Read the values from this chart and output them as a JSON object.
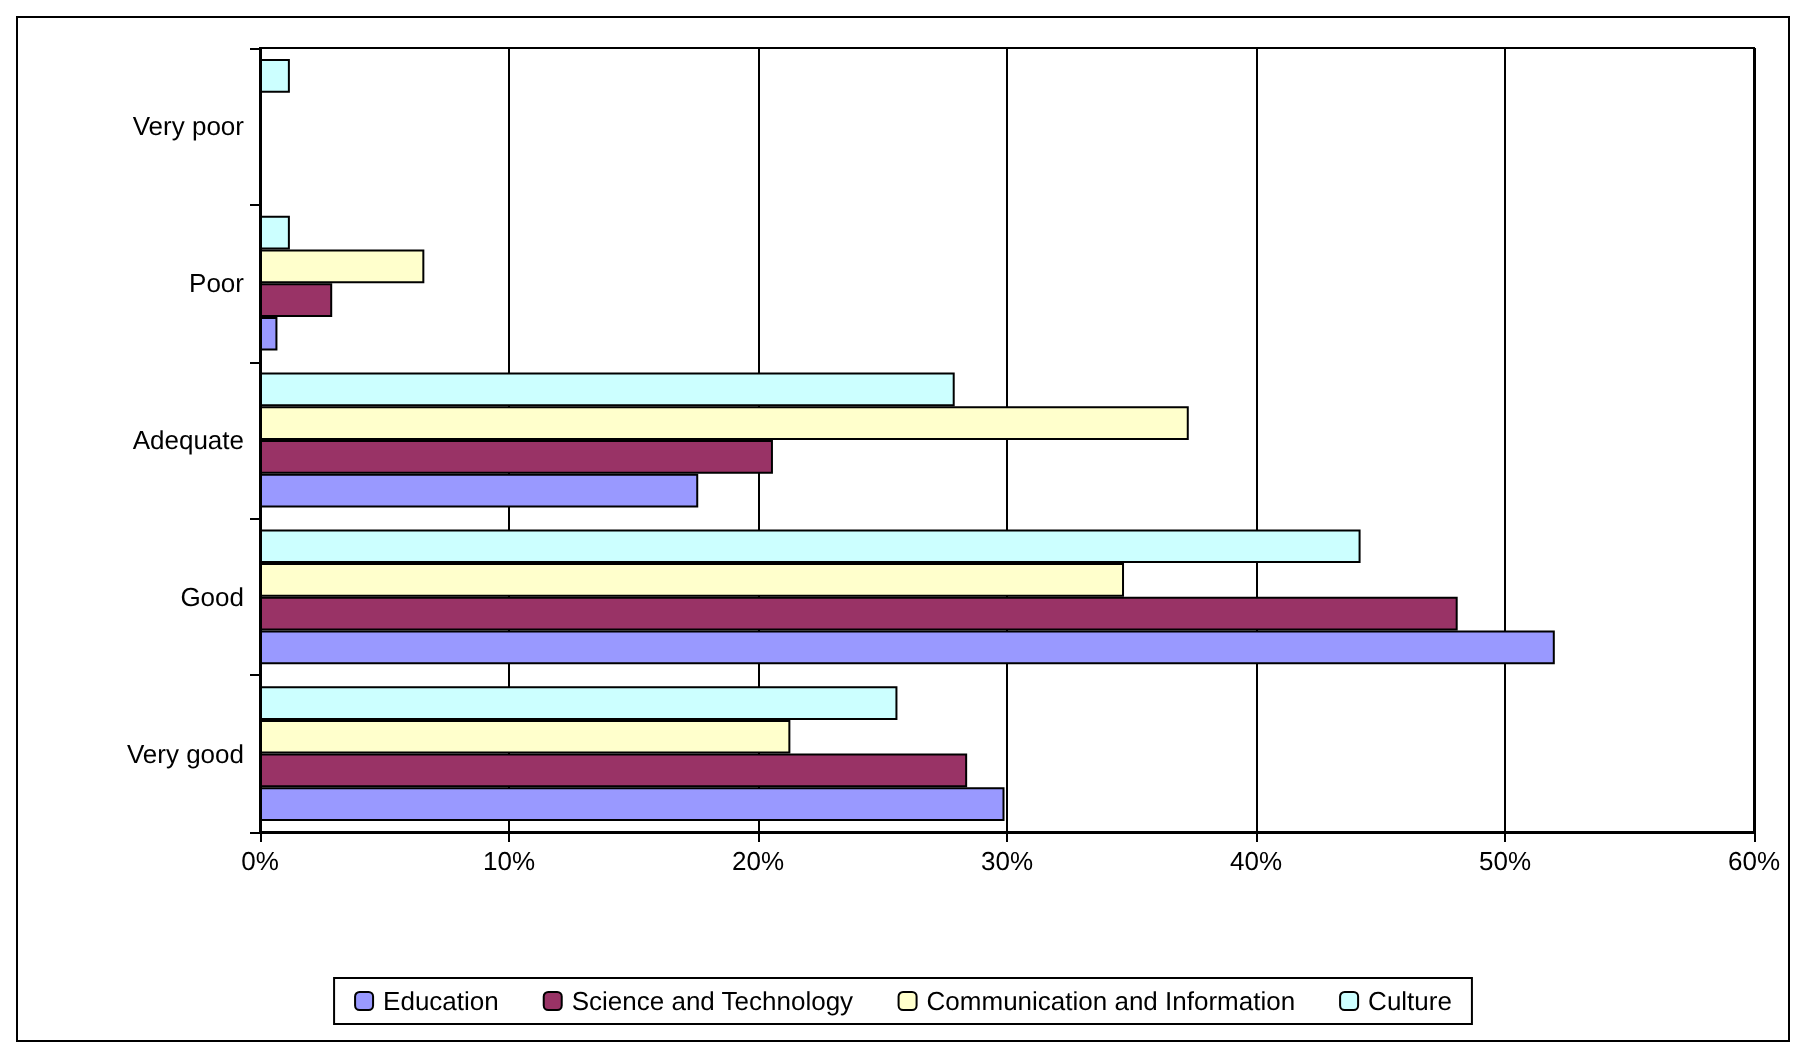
{
  "chart_data": {
    "type": "bar",
    "orientation": "horizontal",
    "categories": [
      "Very poor",
      "Poor",
      "Adequate",
      "Good",
      "Very good"
    ],
    "series": [
      {
        "name": "Education",
        "color": "#9999ff",
        "values": [
          null,
          0.7,
          17.6,
          52.0,
          29.9
        ]
      },
      {
        "name": "Science and Technology",
        "color": "#993366",
        "values": [
          null,
          2.9,
          20.6,
          48.1,
          28.4
        ]
      },
      {
        "name": "Communication and Information",
        "color": "#ffffcc",
        "values": [
          null,
          6.6,
          37.3,
          34.7,
          21.3
        ]
      },
      {
        "name": "Culture",
        "color": "#ccffff",
        "values": [
          1.2,
          1.2,
          27.9,
          44.2,
          25.6
        ]
      }
    ],
    "xlim": [
      0,
      60
    ],
    "xticks": [
      {
        "value": 0,
        "label": "0%"
      },
      {
        "value": 10,
        "label": "10%"
      },
      {
        "value": 20,
        "label": "20%"
      },
      {
        "value": 30,
        "label": "30%"
      },
      {
        "value": 40,
        "label": "40%"
      },
      {
        "value": 50,
        "label": "50%"
      },
      {
        "value": 60,
        "label": "60%"
      }
    ],
    "grid": "x",
    "legend": "bottom"
  }
}
